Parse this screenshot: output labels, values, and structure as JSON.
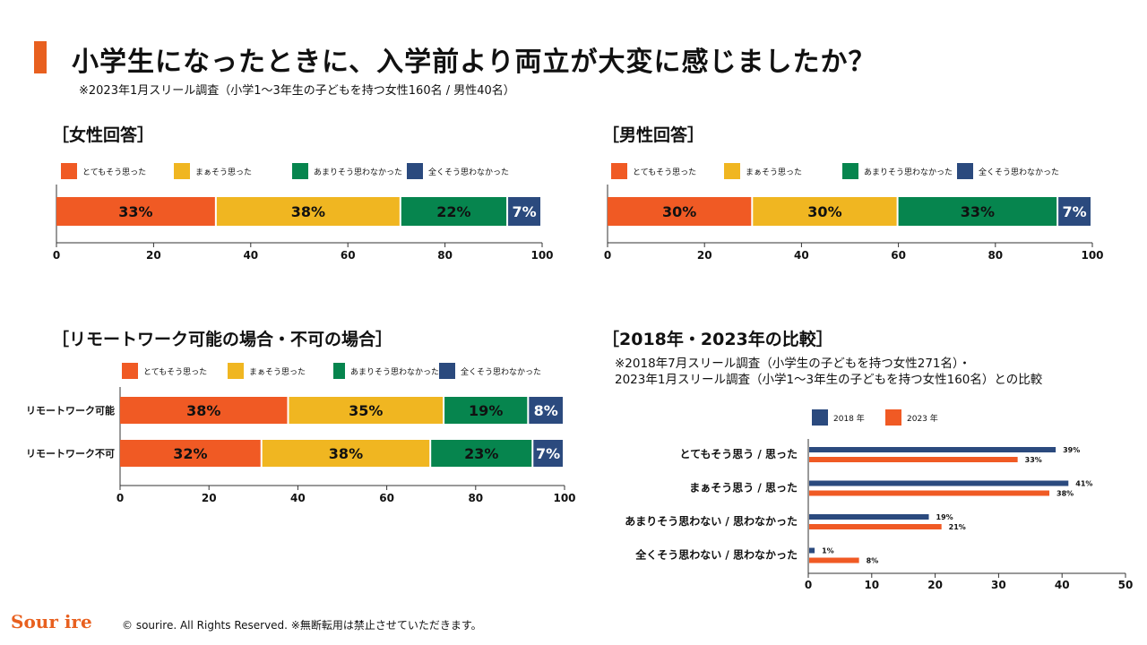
{
  "title": "小学生になったときに、入学前より両立が大変に感じましたか？",
  "subtitle": "※2023年1月スリール調査（小学1～3年生の子どもを持つ女性160名 / 男性40名）",
  "colors": {
    "accent": "#e8601f",
    "c1": "#f05a24",
    "c2": "#f0b621",
    "c3": "#06854e",
    "c4": "#2b4a7e"
  },
  "legend_labels": [
    "とてもそう思った",
    "まぁそう思った",
    "あまりそう思わなかった",
    "全くそう思わなかった"
  ],
  "female": {
    "section_title": "［女性回答］",
    "chart_data": {
      "type": "bar",
      "orientation": "horizontal",
      "stacked": true,
      "xlim": [
        0,
        100
      ],
      "ticks": [
        "0",
        "20",
        "40",
        "60",
        "80",
        "100"
      ],
      "series": [
        {
          "name": "とてもそう思った",
          "values": [
            33
          ]
        },
        {
          "name": "まぁそう思った",
          "values": [
            38
          ]
        },
        {
          "name": "あまりそう思わなかった",
          "values": [
            22
          ]
        },
        {
          "name": "全くそう思わなかった",
          "values": [
            7
          ]
        }
      ],
      "data_labels": [
        "33%",
        "38%",
        "22%",
        "7%"
      ]
    }
  },
  "male": {
    "section_title": "［男性回答］",
    "chart_data": {
      "type": "bar",
      "orientation": "horizontal",
      "stacked": true,
      "xlim": [
        0,
        100
      ],
      "ticks": [
        "0",
        "20",
        "40",
        "60",
        "80",
        "100"
      ],
      "series": [
        {
          "name": "とてもそう思った",
          "values": [
            30
          ]
        },
        {
          "name": "まぁそう思った",
          "values": [
            30
          ]
        },
        {
          "name": "あまりそう思わなかった",
          "values": [
            33
          ]
        },
        {
          "name": "全くそう思わなかった",
          "values": [
            7
          ]
        }
      ],
      "data_labels": [
        "30%",
        "30%",
        "33%",
        "7%"
      ]
    }
  },
  "remote": {
    "section_title": "［リモートワーク可能の場合・不可の場合］",
    "chart_data": {
      "type": "bar",
      "orientation": "horizontal",
      "stacked": true,
      "xlim": [
        0,
        100
      ],
      "ticks": [
        "0",
        "20",
        "40",
        "60",
        "80",
        "100"
      ],
      "categories": [
        "リモートワーク可能",
        "リモートワーク不可"
      ],
      "series": [
        {
          "name": "とてもそう思った",
          "values": [
            38,
            32
          ]
        },
        {
          "name": "まぁそう思った",
          "values": [
            35,
            38
          ]
        },
        {
          "name": "あまりそう思わなかった",
          "values": [
            19,
            23
          ]
        },
        {
          "name": "全くそう思わなかった",
          "values": [
            8,
            7
          ]
        }
      ],
      "data_labels": [
        [
          "38%",
          "35%",
          "19%",
          "8%"
        ],
        [
          "32%",
          "38%",
          "23%",
          "7%"
        ]
      ]
    }
  },
  "comparison": {
    "section_title": "［2018年・2023年の比較］",
    "note_lines": [
      "※2018年7月スリール調査（小学生の子どもを持つ女性271名）・",
      "2023年1月スリール調査（小学1～3年生の子どもを持つ女性160名）との比較"
    ],
    "chart_data": {
      "type": "bar",
      "orientation": "horizontal",
      "xlim": [
        0,
        50
      ],
      "ticks": [
        "0",
        "10",
        "20",
        "30",
        "40",
        "50"
      ],
      "categories": [
        "とてもそう思う / 思った",
        "まぁそう思う / 思った",
        "あまりそう思わない / 思わなかった",
        "全くそう思わない / 思わなかった"
      ],
      "series": [
        {
          "name": "2018 年",
          "values": [
            39,
            41,
            19,
            1
          ]
        },
        {
          "name": "2023 年",
          "values": [
            33,
            38,
            21,
            8
          ]
        }
      ],
      "data_labels": [
        [
          "39%",
          "41%",
          "19%",
          "1%"
        ],
        [
          "33%",
          "38%",
          "21%",
          "8%"
        ]
      ]
    }
  },
  "footer": {
    "brand": "Sour ire",
    "copyright": "© sourire. All Rights Reserved. ※無断転用は禁止させていただきます。"
  }
}
